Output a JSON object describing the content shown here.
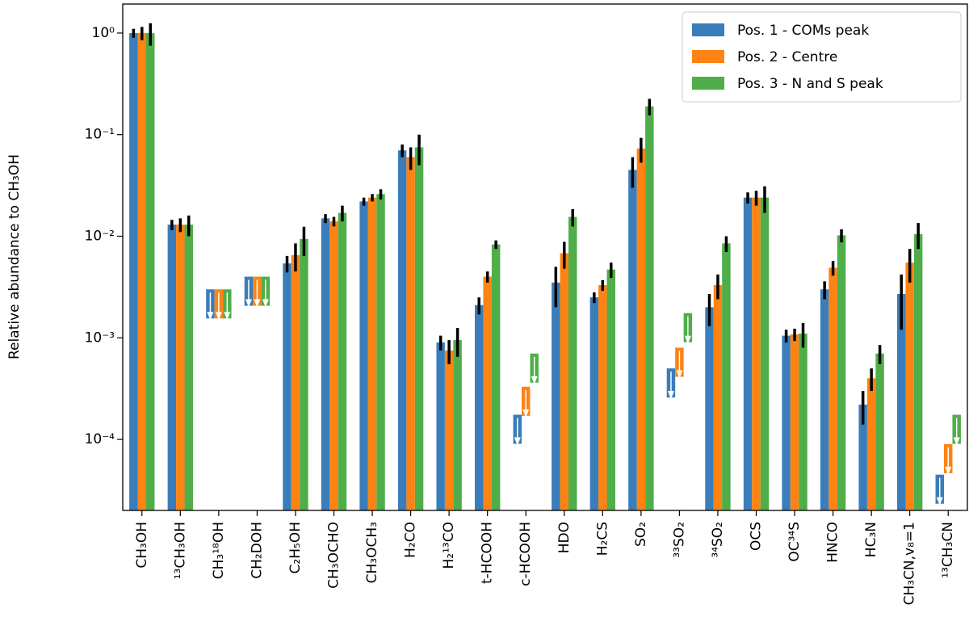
{
  "chart_data": {
    "type": "bar",
    "y_label": "Relative abundance to CH₃OH",
    "log_scale": true,
    "legend_position": "upper right",
    "categories": [
      "CH₃OH",
      "¹³CH₃OH",
      "CH₃¹⁸OH",
      "CH₂DOH",
      "C₂H₅OH",
      "CH₃OCHO",
      "CH₃OCH₃",
      "H₂CO",
      "H₂¹³CO",
      "t-HCOOH",
      "c-HCOOH",
      "HDO",
      "H₂CS",
      "SO₂",
      "³³SO₂",
      "³⁴SO₂",
      "OCS",
      "OC³⁴S",
      "HNCO",
      "HC₃N",
      "CH₃CN,v₈=1",
      "¹³CH₃CN"
    ],
    "series": [
      {
        "name": "Pos. 1 - COMs peak",
        "color": "#3a7dbb",
        "values": [
          1,
          0.013,
          0.003,
          0.004,
          0.0054,
          0.015,
          0.022,
          0.07,
          0.0009,
          0.0021,
          0.000175,
          0.0035,
          0.0025,
          0.045,
          0.0005,
          0.002,
          0.024,
          0.00105,
          0.003,
          0.00022,
          0.0027,
          4.5e-05
        ],
        "errors": [
          0.1,
          0.0015,
          null,
          null,
          0.001,
          0.0015,
          0.002,
          0.01,
          0.00015,
          0.0004,
          null,
          0.0015,
          0.0003,
          0.015,
          null,
          0.0007,
          0.003,
          0.00015,
          0.0006,
          8e-05,
          0.0015,
          null
        ],
        "upper_limit": [
          false,
          false,
          true,
          true,
          false,
          false,
          false,
          false,
          false,
          false,
          true,
          false,
          false,
          false,
          true,
          false,
          false,
          false,
          false,
          false,
          false,
          true
        ]
      },
      {
        "name": "Pos. 2 - Centre",
        "color": "#fd8313",
        "values": [
          1,
          0.013,
          0.003,
          0.004,
          0.0065,
          0.014,
          0.024,
          0.06,
          0.00075,
          0.004,
          0.00033,
          0.0068,
          0.0033,
          0.073,
          0.0008,
          0.0033,
          0.024,
          0.00108,
          0.0049,
          0.0004,
          0.0055,
          9e-05
        ],
        "errors": [
          0.15,
          0.002,
          null,
          null,
          0.002,
          0.0015,
          0.002,
          0.015,
          0.0002,
          0.0005,
          null,
          0.002,
          0.0004,
          0.02,
          null,
          0.0009,
          0.004,
          0.00015,
          0.0008,
          0.0001,
          0.002,
          null
        ],
        "upper_limit": [
          false,
          false,
          true,
          true,
          false,
          false,
          false,
          false,
          false,
          false,
          true,
          false,
          false,
          false,
          true,
          false,
          false,
          false,
          false,
          false,
          false,
          true
        ]
      },
      {
        "name": "Pos. 3 - N and S peak",
        "color": "#4fae4a",
        "values": [
          1,
          0.013,
          0.003,
          0.004,
          0.0094,
          0.017,
          0.026,
          0.075,
          0.00095,
          0.0083,
          0.0007,
          0.0155,
          0.0047,
          0.19,
          0.00175,
          0.0085,
          0.024,
          0.0011,
          0.0102,
          0.0007,
          0.0105,
          0.000175
        ],
        "errors": [
          0.25,
          0.003,
          null,
          null,
          0.003,
          0.003,
          0.003,
          0.025,
          0.0003,
          0.0008,
          null,
          0.003,
          0.0008,
          0.035,
          null,
          0.0015,
          0.007,
          0.0003,
          0.0015,
          0.00015,
          0.003,
          null
        ],
        "upper_limit": [
          false,
          false,
          true,
          true,
          false,
          false,
          false,
          false,
          false,
          false,
          true,
          false,
          false,
          false,
          true,
          false,
          false,
          false,
          false,
          false,
          false,
          true
        ]
      }
    ],
    "ylim": [
      2e-05,
      1.93
    ],
    "yticks": [
      {
        "value": 0.0001,
        "label": "10⁻⁴"
      },
      {
        "value": 0.001,
        "label": "10⁻³"
      },
      {
        "value": 0.01,
        "label": "10⁻²"
      },
      {
        "value": 0.1,
        "label": "10⁻¹"
      },
      {
        "value": 1,
        "label": "10⁰"
      }
    ]
  }
}
